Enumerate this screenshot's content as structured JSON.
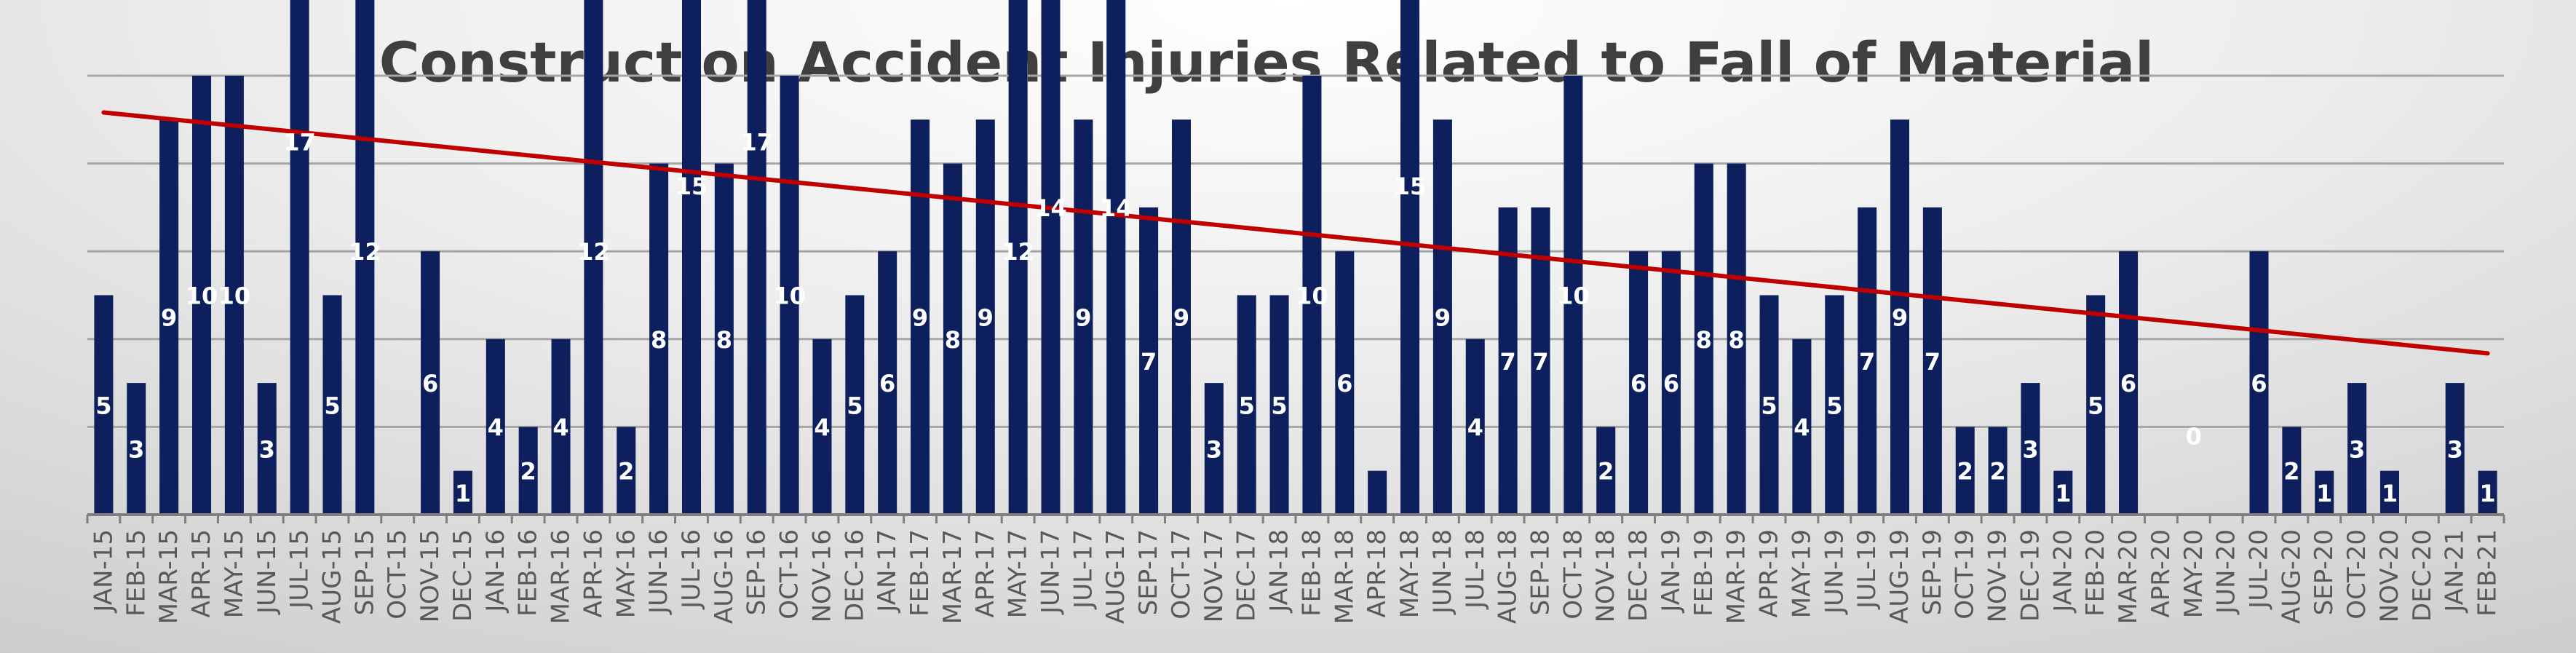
{
  "chart_data": {
    "type": "bar",
    "title": "Construction Accident Injuries Related to Fall of Material",
    "categories": [
      "JAN-15",
      "FEB-15",
      "MAR-15",
      "APR-15",
      "MAY-15",
      "JUN-15",
      "JUL-15",
      "AUG-15",
      "SEP-15",
      "OCT-15",
      "NOV-15",
      "DEC-15",
      "JAN-16",
      "FEB-16",
      "MAR-16",
      "APR-16",
      "MAY-16",
      "JUN-16",
      "JUL-16",
      "AUG-16",
      "SEP-16",
      "OCT-16",
      "NOV-16",
      "DEC-16",
      "JAN-17",
      "FEB-17",
      "MAR-17",
      "APR-17",
      "MAY-17",
      "JUN-17",
      "JUL-17",
      "AUG-17",
      "SEP-17",
      "OCT-17",
      "NOV-17",
      "DEC-17",
      "JAN-18",
      "FEB-18",
      "MAR-18",
      "APR-18",
      "MAY-18",
      "JUN-18",
      "JUL-18",
      "AUG-18",
      "SEP-18",
      "OCT-18",
      "NOV-18",
      "DEC-18",
      "JAN-19",
      "FEB-19",
      "MAR-19",
      "APR-19",
      "MAY-19",
      "JUN-19",
      "JUL-19",
      "AUG-19",
      "SEP-19",
      "OCT-19",
      "NOV-19",
      "DEC-19",
      "JAN-20",
      "FEB-20",
      "MAR-20",
      "APR-20",
      "MAY-20",
      "JUN-20",
      "JUL-20",
      "AUG-20",
      "SEP-20",
      "OCT-20",
      "NOV-20",
      "DEC-20",
      "JAN-21",
      "FEB-21"
    ],
    "values": [
      5,
      3,
      9,
      10,
      10,
      3,
      17,
      5,
      12,
      null,
      6,
      1,
      4,
      2,
      4,
      12,
      2,
      8,
      15,
      8,
      17,
      10,
      4,
      5,
      6,
      9,
      8,
      9,
      12,
      14,
      9,
      14,
      7,
      9,
      3,
      5,
      5,
      10,
      6,
      1,
      15,
      9,
      4,
      7,
      7,
      10,
      2,
      6,
      6,
      8,
      8,
      5,
      4,
      5,
      7,
      9,
      7,
      2,
      2,
      3,
      1,
      5,
      6,
      null,
      0,
      null,
      6,
      2,
      1,
      3,
      1,
      null,
      3,
      1
    ],
    "data_labels": [
      "5",
      "3",
      "9",
      "10",
      "10",
      "3",
      "17",
      "5",
      "12",
      "",
      "6",
      "1",
      "4",
      "2",
      "4",
      "12",
      "2",
      "8",
      "15",
      "8",
      "17",
      "10",
      "4",
      "5",
      "6",
      "9",
      "8",
      "9",
      "12",
      "14",
      "9",
      "14",
      "7",
      "9",
      "3",
      "5",
      "5",
      "10",
      "6",
      "",
      "15",
      "9",
      "4",
      "7",
      "7",
      "10",
      "2",
      "6",
      "6",
      "8",
      "8",
      "5",
      "4",
      "5",
      "7",
      "9",
      "7",
      "2",
      "2",
      "3",
      "1",
      "5",
      "6",
      "",
      "0",
      "",
      "6",
      "2",
      "1",
      "3",
      "1",
      "",
      "3",
      "1"
    ],
    "ylim": [
      0,
      17
    ],
    "gridlines": [
      2,
      4,
      6,
      8,
      10,
      12,
      14,
      16
    ],
    "grid": true,
    "legend": false,
    "trendline": {
      "type": "linear",
      "color": "#c00000"
    },
    "colors": {
      "bar": "#0d1f5c",
      "grid": "#a6a6a6",
      "axis": "#7f7f7f"
    }
  }
}
